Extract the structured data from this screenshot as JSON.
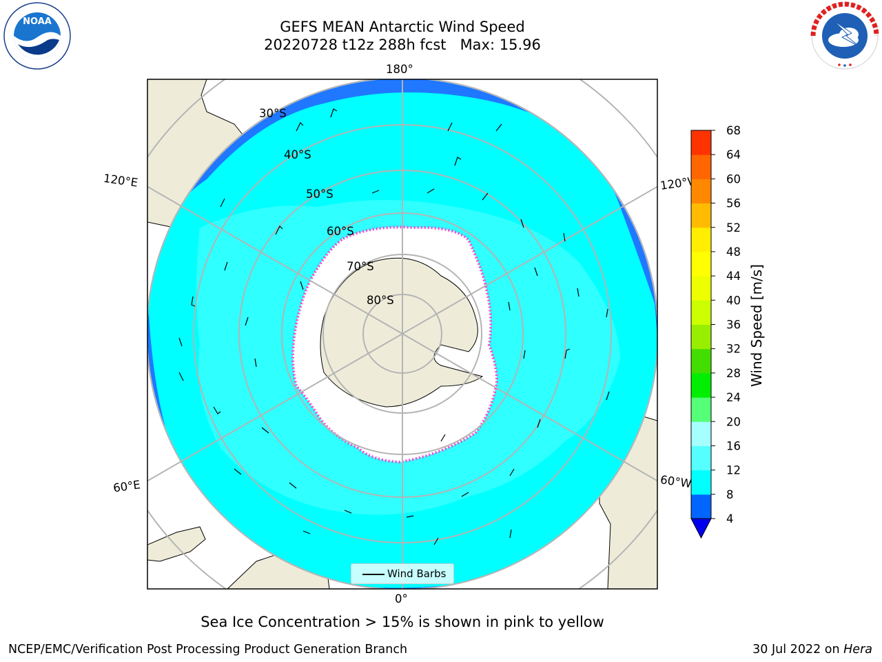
{
  "header": {
    "title_line1": "GEFS MEAN Antarctic Wind Speed",
    "title_line2": "20220728 t12z 288h fcst   Max: 15.96"
  },
  "logos": {
    "left": {
      "name": "NOAA",
      "ring_text": "NATIONAL OCEANIC AND ATMOSPHERIC ADMINISTRATION · U.S. DEPARTMENT OF COMMERCE"
    },
    "right": {
      "name": "NATIONAL WEATHER SERVICE"
    }
  },
  "map": {
    "projection": "south-polar-stereographic",
    "extent_south_latitude": -20,
    "lat_labels": [
      "30°S",
      "40°S",
      "50°S",
      "60°S",
      "70°S",
      "80°S"
    ],
    "lon_labels": {
      "top": "180°",
      "bottom": "0°",
      "left_upper": "120°E",
      "left_lower": "60°E",
      "right_upper": "120°W",
      "right_lower": "60°W"
    },
    "colors": {
      "land": "#eeecd9",
      "sea_ice": "#ffffff",
      "ice_edge": "#ff44cc",
      "wind_4_8": "#1f78ff",
      "wind_8_12": "#00ffff",
      "wind_12_16": "#55ffff",
      "grid": "#b4b4b4"
    },
    "legend": {
      "label": "Wind Barbs"
    }
  },
  "colorbar": {
    "label": "Wind Speed [m/s]",
    "ticks": [
      "4",
      "8",
      "12",
      "16",
      "20",
      "24",
      "28",
      "32",
      "36",
      "40",
      "44",
      "48",
      "52",
      "56",
      "60",
      "64",
      "68"
    ],
    "colors": [
      "#0066ff",
      "#00ffff",
      "#55ffff",
      "#a6ffff",
      "#55ff77",
      "#00ee00",
      "#44dd00",
      "#99ee00",
      "#ccff00",
      "#eeff00",
      "#ffff00",
      "#ffee00",
      "#ffbb00",
      "#ff8800",
      "#ff6600",
      "#ff3300",
      "#ff0000"
    ],
    "extend_color": "#0000ee"
  },
  "chart_data": {
    "type": "heatmap",
    "title": "GEFS MEAN Antarctic Wind Speed",
    "subtitle": "20220728 t12z 288h fcst   Max: 15.96",
    "max": 15.96,
    "colorbar_range": [
      4,
      68
    ],
    "colorbar_label": "Wind Speed [m/s]",
    "legend": [
      "Wind Barbs"
    ]
  },
  "caption": "Sea Ice Concentration > 15% is shown in pink to yellow",
  "footer": {
    "left": "NCEP/EMC/Verification Post Processing Product Generation Branch",
    "date": "30 Jul 2022 on ",
    "machine": "Hera"
  }
}
